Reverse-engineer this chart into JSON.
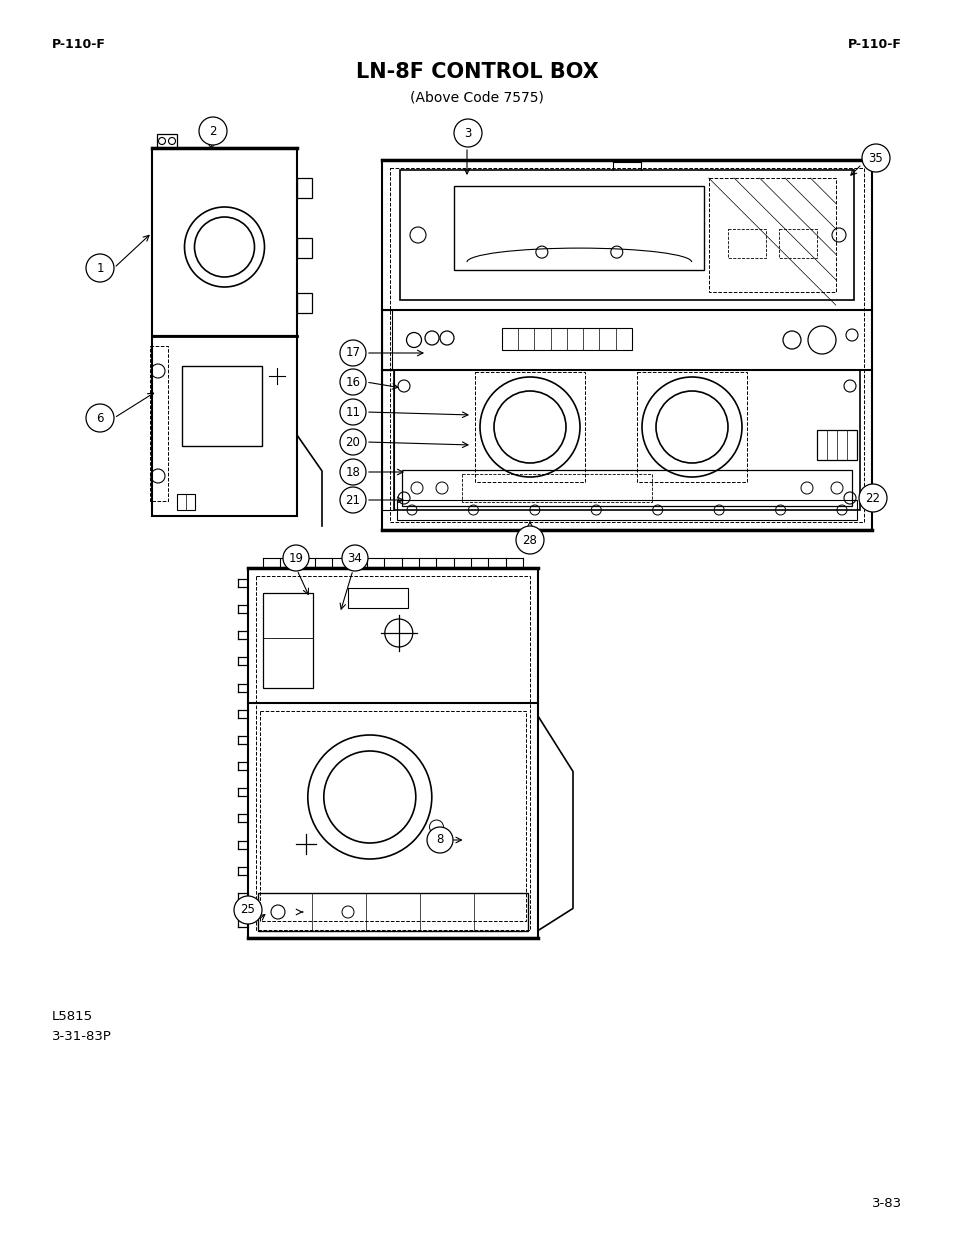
{
  "title": "LN-8F CONTROL BOX",
  "subtitle": "(Above Code 7575)",
  "header_left": "P-110-F",
  "header_right": "P-110-F",
  "footer_left1": "L5815",
  "footer_left2": "3-31-83P",
  "footer_right": "3-83",
  "bg_color": "#ffffff",
  "line_color": "#000000"
}
